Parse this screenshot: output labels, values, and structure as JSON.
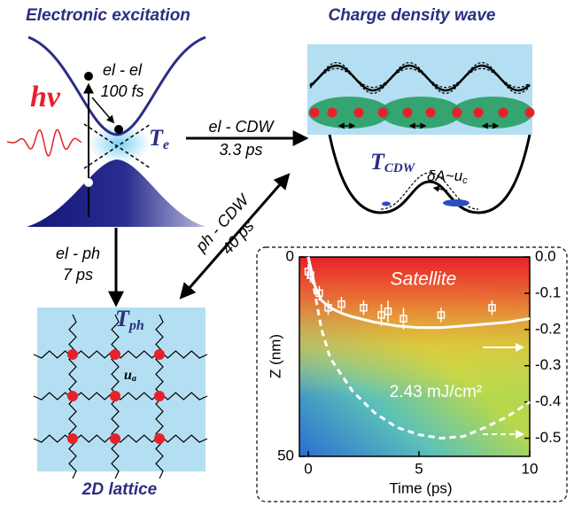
{
  "electronic_excitation": {
    "title": "Electronic excitation",
    "photon": "hv",
    "process": "el - el",
    "time": "100 fs",
    "temperature": {
      "symbol": "T",
      "subscript": "e"
    }
  },
  "charge_density_wave": {
    "title": "Charge density wave",
    "temperature": {
      "symbol": "T",
      "subscript": "CDW"
    },
    "amplitude": {
      "main": "δA~u",
      "subscript": "c"
    }
  },
  "lattice": {
    "title": "2D lattice",
    "temperature": {
      "symbol": "T",
      "subscript": "ph"
    },
    "displacement": {
      "main": "u",
      "subscript": "a"
    }
  },
  "couplings": {
    "el_cdw": {
      "process": "el - CDW",
      "time": "3.3 ps"
    },
    "ph_cdw": {
      "process": "ph - CDW",
      "time": "40 ps"
    },
    "el_ph": {
      "process": "el - ph",
      "time": "7 ps"
    }
  },
  "chart_data": {
    "type": "line",
    "x_label": "Time (ps)",
    "y_label": "Z (nm)",
    "annotation": "Satellite",
    "fluence": "2.43 mJ/cm²",
    "xlim": [
      -0.4,
      10
    ],
    "xticks": [
      0,
      5,
      10
    ],
    "ylim": [
      0,
      50
    ],
    "yticks": [
      0,
      50
    ],
    "y2lim": [
      0,
      -0.55
    ],
    "y2ticks": [
      {
        "value": 0,
        "label": "0.0"
      },
      -0.1,
      -0.2,
      -0.3,
      -0.4,
      -0.5
    ],
    "series": [
      {
        "axis": "y2",
        "style": "markers",
        "color": "#ffffff",
        "x": [
          0,
          0.1,
          0.5,
          0.9,
          1.5,
          2.5,
          3.3,
          3.6,
          4.3,
          6,
          8.3
        ],
        "values": [
          -0.04,
          -0.05,
          -0.1,
          -0.14,
          -0.13,
          -0.14,
          -0.16,
          -0.15,
          -0.17,
          -0.16,
          -0.14
        ],
        "errors": [
          0.02,
          0.02,
          0.02,
          0.02,
          0.02,
          0.02,
          0.03,
          0.03,
          0.03,
          0.02,
          0.02
        ]
      },
      {
        "axis": "y2",
        "style": "solid",
        "color": "#ffffff",
        "x": [
          0,
          0.3,
          0.6,
          1,
          1.5,
          2,
          3,
          4,
          5,
          6,
          7,
          8,
          9,
          10
        ],
        "values": [
          0,
          -0.08,
          -0.12,
          -0.14,
          -0.155,
          -0.165,
          -0.18,
          -0.19,
          -0.195,
          -0.195,
          -0.19,
          -0.185,
          -0.18,
          -0.17
        ]
      },
      {
        "axis": "y2",
        "style": "dashed",
        "color": "#ffffff",
        "x": [
          0,
          0.3,
          0.6,
          1,
          2,
          3,
          4,
          5,
          6,
          7,
          8,
          9,
          10
        ],
        "values": [
          0,
          -0.1,
          -0.2,
          -0.28,
          -0.37,
          -0.43,
          -0.47,
          -0.49,
          -0.5,
          -0.495,
          -0.47,
          -0.44,
          -0.4
        ]
      }
    ]
  }
}
